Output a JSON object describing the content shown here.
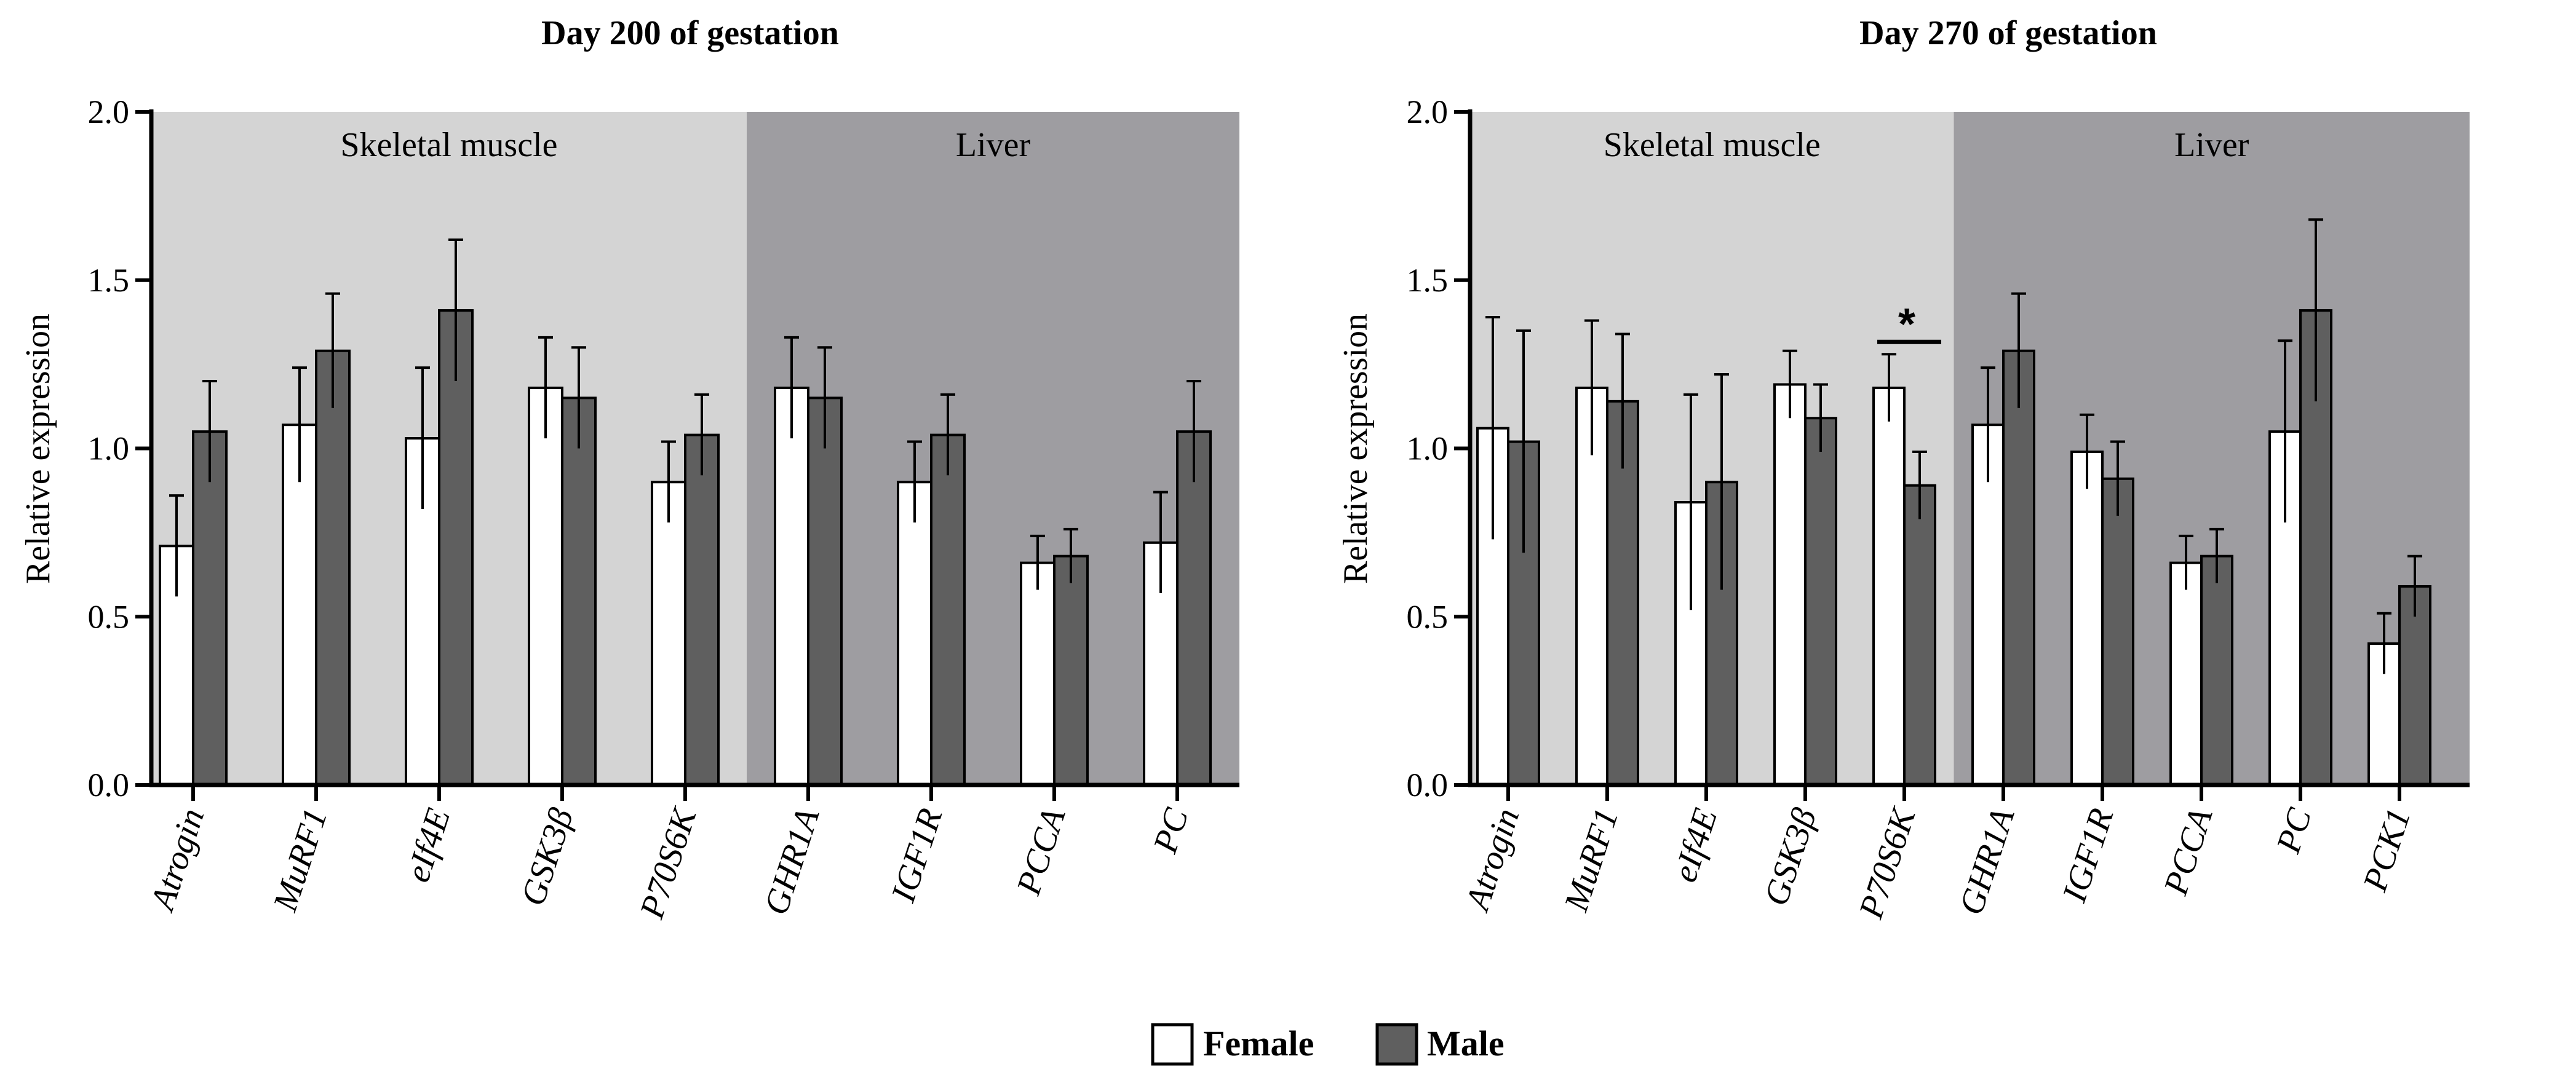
{
  "legend": {
    "female": {
      "label": "Female",
      "color": "#ffffff"
    },
    "male": {
      "label": "Male",
      "color": "#5f5f5f"
    }
  },
  "colors": {
    "skeletal_region": "#d4d4d4",
    "liver_region": "#9e9da1",
    "axis": "#000000"
  },
  "chart_data": [
    {
      "type": "bar",
      "title": "Day 200 of gestation",
      "ylabel": "Relative expression",
      "xlabel": "",
      "ylim": [
        0,
        2.0
      ],
      "yticks": [
        "0.0",
        "0.5",
        "1.0",
        "1.5",
        "2.0"
      ],
      "ytick_values": [
        0,
        0.5,
        1.0,
        1.5,
        2.0
      ],
      "categories": [
        "Atrogin",
        "MuRF1",
        "eIf4E",
        "GSK3β",
        "P70S6K",
        "GHR1A",
        "IGF1R",
        "PCCA",
        "PC"
      ],
      "regions": [
        {
          "label": "Skeletal muscle",
          "start": 0,
          "end": 4
        },
        {
          "label": "Liver",
          "start": 5,
          "end": 8
        }
      ],
      "series": [
        {
          "name": "Female",
          "values": [
            0.71,
            1.07,
            1.03,
            1.18,
            0.9,
            1.18,
            0.9,
            0.66,
            0.72
          ],
          "errors": [
            0.15,
            0.17,
            0.21,
            0.15,
            0.12,
            0.15,
            0.12,
            0.08,
            0.15
          ]
        },
        {
          "name": "Male",
          "values": [
            1.05,
            1.29,
            1.41,
            1.15,
            1.04,
            1.15,
            1.04,
            0.68,
            1.05
          ],
          "errors": [
            0.15,
            0.17,
            0.21,
            0.15,
            0.12,
            0.15,
            0.12,
            0.08,
            0.15
          ]
        }
      ],
      "significance": []
    },
    {
      "type": "bar",
      "title": "Day 270 of gestation",
      "ylabel": "Relative expression",
      "xlabel": "",
      "ylim": [
        0,
        2.0
      ],
      "yticks": [
        "0.0",
        "0.5",
        "1.0",
        "1.5",
        "2.0"
      ],
      "ytick_values": [
        0,
        0.5,
        1.0,
        1.5,
        2.0
      ],
      "categories": [
        "Atrogin",
        "MuRF1",
        "eIf4E",
        "GSK3β",
        "P70S6K",
        "GHR1A",
        "IGF1R",
        "PCCA",
        "PC",
        "PCK1"
      ],
      "regions": [
        {
          "label": "Skeletal muscle",
          "start": 0,
          "end": 4
        },
        {
          "label": "Liver",
          "start": 5,
          "end": 9
        }
      ],
      "series": [
        {
          "name": "Female",
          "values": [
            1.06,
            1.18,
            0.84,
            1.19,
            1.18,
            1.07,
            0.99,
            0.66,
            1.05,
            0.42
          ],
          "errors": [
            0.33,
            0.2,
            0.32,
            0.1,
            0.1,
            0.17,
            0.11,
            0.08,
            0.27,
            0.09
          ]
        },
        {
          "name": "Male",
          "values": [
            1.02,
            1.14,
            0.9,
            1.09,
            0.89,
            1.29,
            0.91,
            0.68,
            1.41,
            0.59
          ],
          "errors": [
            0.33,
            0.2,
            0.32,
            0.1,
            0.1,
            0.17,
            0.11,
            0.08,
            0.27,
            0.09
          ]
        }
      ],
      "significance": [
        {
          "category": 4,
          "label": "*"
        }
      ]
    }
  ]
}
